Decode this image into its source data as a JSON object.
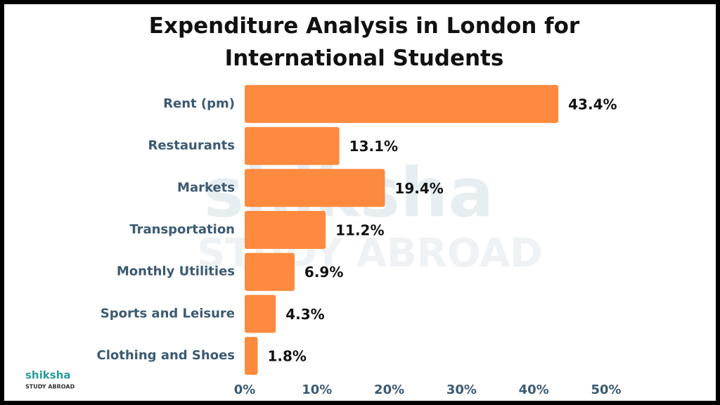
{
  "chart_data": {
    "type": "barh",
    "title": "Expenditure Analysis in London for International Students",
    "categories": [
      "Rent (pm)",
      "Restaurants",
      "Markets",
      "Transportation",
      "Monthly Utilities",
      "Sports and Leisure",
      "Clothing and Shoes"
    ],
    "values": [
      43.4,
      13.1,
      19.4,
      11.2,
      6.9,
      4.3,
      1.8
    ],
    "value_labels": [
      "43.4%",
      "13.1%",
      "19.4%",
      "11.2%",
      "6.9%",
      "4.3%",
      "1.8%"
    ],
    "color": "#fd8a3e",
    "xlim": [
      0,
      50
    ],
    "xticks": [
      {
        "value": 0,
        "label": "0%"
      },
      {
        "value": 10,
        "label": "10%"
      },
      {
        "value": 20,
        "label": "20%"
      },
      {
        "value": 30,
        "label": "30%"
      },
      {
        "value": 40,
        "label": "40%"
      },
      {
        "value": 50,
        "label": "50%"
      }
    ],
    "grid": false,
    "watermark": {
      "brand": "shiksha",
      "tagline": "STUDY ABROAD"
    },
    "logo": {
      "brand": "shiksha",
      "tagline": "STUDY ABROAD"
    }
  }
}
